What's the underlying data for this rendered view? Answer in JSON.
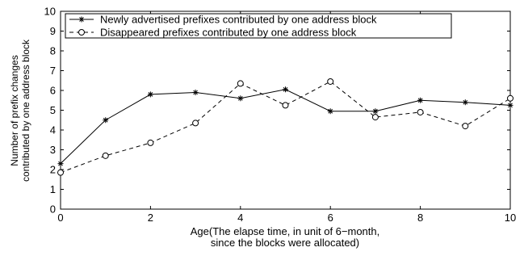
{
  "chart_data": {
    "type": "line",
    "title": "",
    "xlabel": [
      "Age(The elapse time, in unit of 6−month,",
      "since the blocks were allocated)"
    ],
    "ylabel": [
      "Number of prefix changes",
      "contributed by one address block"
    ],
    "xlim": [
      0,
      10
    ],
    "ylim": [
      0,
      10
    ],
    "x_ticks": [
      "0",
      "2",
      "4",
      "6",
      "8",
      "10"
    ],
    "y_ticks": [
      "0",
      "1",
      "2",
      "3",
      "4",
      "5",
      "6",
      "7",
      "8",
      "9",
      "10"
    ],
    "grid": false,
    "legend_position": "top",
    "x": [
      0,
      1,
      2,
      3,
      4,
      5,
      6,
      7,
      8,
      9,
      10
    ],
    "series": [
      {
        "name": "Newly advertised prefixes contributed by one address block",
        "values": [
          2.3,
          4.5,
          5.8,
          5.9,
          5.6,
          6.05,
          4.95,
          4.95,
          5.5,
          5.4,
          5.25
        ],
        "line_style": "solid",
        "marker": "asterisk",
        "color": "#000000"
      },
      {
        "name": "Disappeared prefixes contributed by one address block",
        "values": [
          1.85,
          2.7,
          3.35,
          4.35,
          6.35,
          5.25,
          6.45,
          4.65,
          4.9,
          4.2,
          5.6
        ],
        "line_style": "dashed",
        "marker": "circle",
        "color": "#000000"
      }
    ]
  }
}
